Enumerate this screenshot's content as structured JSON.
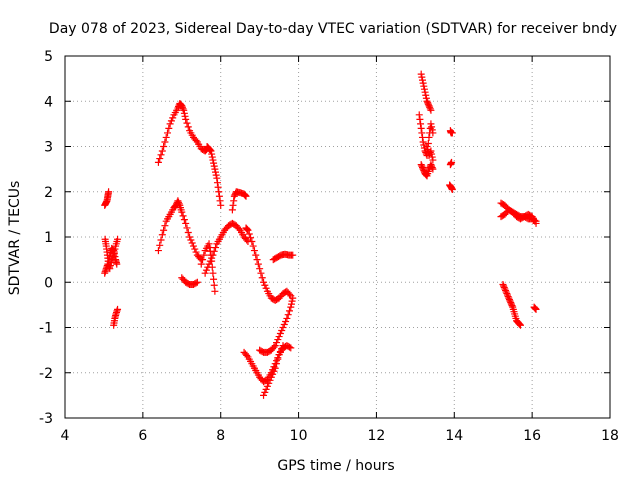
{
  "chart_data": {
    "type": "scatter",
    "title": "Day 078 of 2023, Sidereal Day-to-day VTEC variation (SDTVAR) for receiver bndy",
    "xlabel": "GPS time / hours",
    "ylabel": "SDTVAR / TECUs",
    "xlim": [
      4,
      18
    ],
    "ylim": [
      -3,
      5
    ],
    "xticks": [
      4,
      6,
      8,
      10,
      12,
      14,
      16,
      18
    ],
    "yticks": [
      -3,
      -2,
      -1,
      0,
      1,
      2,
      3,
      4,
      5
    ],
    "xtick_labels": [
      "4",
      "6",
      "8",
      "10",
      "12",
      "14",
      "16",
      "18"
    ],
    "ytick_labels": [
      "-3",
      "-2",
      "-1",
      "0",
      "1",
      "2",
      "3",
      "4",
      "5"
    ],
    "grid": true,
    "marker": "plus",
    "color": "#ff0000",
    "series": [
      {
        "name": "s1",
        "x": [
          5.02,
          5.05,
          5.08,
          5.1,
          5.12
        ],
        "y": [
          1.7,
          1.75,
          1.8,
          1.9,
          2.0
        ]
      },
      {
        "name": "s2",
        "x": [
          5.03,
          5.06,
          5.09,
          5.12,
          5.15,
          5.2,
          5.25,
          5.3,
          5.35
        ],
        "y": [
          0.95,
          0.8,
          0.6,
          0.4,
          0.3,
          0.5,
          0.6,
          0.8,
          0.95
        ]
      },
      {
        "name": "s3",
        "x": [
          5.02,
          5.06,
          5.1,
          5.15,
          5.2,
          5.25,
          5.3,
          5.33
        ],
        "y": [
          0.2,
          0.3,
          0.4,
          0.6,
          0.75,
          0.7,
          0.5,
          0.4
        ]
      },
      {
        "name": "s4",
        "x": [
          5.25,
          5.28,
          5.31,
          5.35
        ],
        "y": [
          -0.95,
          -0.8,
          -0.7,
          -0.6
        ]
      },
      {
        "name": "s5",
        "x": [
          6.4,
          6.5,
          6.6,
          6.7,
          6.8,
          6.9,
          6.95,
          7.0,
          7.05,
          7.1,
          7.2,
          7.3,
          7.4,
          7.5,
          7.6,
          7.65
        ],
        "y": [
          2.65,
          2.9,
          3.2,
          3.5,
          3.7,
          3.85,
          3.95,
          3.9,
          3.8,
          3.6,
          3.35,
          3.2,
          3.1,
          2.95,
          2.9,
          2.95
        ]
      },
      {
        "name": "s6",
        "x": [
          7.65,
          7.7,
          7.75,
          7.8,
          7.85,
          7.9,
          7.95,
          8.0
        ],
        "y": [
          3.0,
          2.95,
          2.9,
          2.7,
          2.5,
          2.3,
          2.0,
          1.7
        ]
      },
      {
        "name": "s7",
        "x": [
          6.4,
          6.5,
          6.6,
          6.7,
          6.8,
          6.85,
          6.9,
          6.95,
          7.0,
          7.1,
          7.2,
          7.3,
          7.4,
          7.5
        ],
        "y": [
          0.7,
          1.05,
          1.35,
          1.5,
          1.65,
          1.7,
          1.8,
          1.7,
          1.55,
          1.3,
          1.0,
          0.8,
          0.6,
          0.5
        ]
      },
      {
        "name": "s8",
        "x": [
          7.0,
          7.1,
          7.2,
          7.3,
          7.4
        ],
        "y": [
          0.1,
          0.0,
          -0.05,
          -0.05,
          0.0
        ]
      },
      {
        "name": "s9",
        "x": [
          7.5,
          7.6,
          7.7,
          7.75,
          7.8,
          7.85
        ],
        "y": [
          0.4,
          0.7,
          0.85,
          0.6,
          0.2,
          -0.2
        ]
      },
      {
        "name": "s10",
        "x": [
          7.6,
          7.7,
          7.8,
          7.9,
          8.0,
          8.1,
          8.2,
          8.3,
          8.4,
          8.5,
          8.6,
          8.7
        ],
        "y": [
          0.2,
          0.4,
          0.6,
          0.85,
          1.0,
          1.15,
          1.25,
          1.3,
          1.25,
          1.15,
          1.0,
          0.9
        ]
      },
      {
        "name": "s11",
        "x": [
          8.3,
          8.35,
          8.4,
          8.5,
          8.6,
          8.65
        ],
        "y": [
          1.6,
          1.9,
          2.0,
          1.98,
          1.95,
          1.9
        ]
      },
      {
        "name": "s12",
        "x": [
          8.65,
          8.7,
          8.8,
          8.9,
          9.0,
          9.1,
          9.2,
          9.3,
          9.4,
          9.5,
          9.6,
          9.7,
          9.8
        ],
        "y": [
          1.2,
          1.15,
          0.9,
          0.6,
          0.3,
          0.0,
          -0.2,
          -0.35,
          -0.4,
          -0.35,
          -0.25,
          -0.2,
          -0.3
        ]
      },
      {
        "name": "s13",
        "x": [
          9.35,
          9.45,
          9.55,
          9.65,
          9.75,
          9.85
        ],
        "y": [
          0.5,
          0.55,
          0.6,
          0.62,
          0.6,
          0.6
        ]
      },
      {
        "name": "s14",
        "x": [
          8.6,
          8.7,
          8.8,
          8.9,
          9.0,
          9.1,
          9.2,
          9.3,
          9.4,
          9.5,
          9.6,
          9.7,
          9.8
        ],
        "y": [
          -1.55,
          -1.65,
          -1.8,
          -1.95,
          -2.1,
          -2.2,
          -2.15,
          -2.0,
          -1.8,
          -1.6,
          -1.45,
          -1.4,
          -1.45
        ]
      },
      {
        "name": "s15",
        "x": [
          9.0,
          9.1,
          9.2,
          9.3,
          9.4,
          9.5,
          9.6,
          9.7,
          9.8,
          9.85
        ],
        "y": [
          -1.5,
          -1.55,
          -1.55,
          -1.5,
          -1.4,
          -1.2,
          -1.0,
          -0.8,
          -0.55,
          -0.35
        ]
      },
      {
        "name": "s16",
        "x": [
          9.1,
          9.2,
          9.3,
          9.4,
          9.5,
          9.6
        ],
        "y": [
          -2.5,
          -2.3,
          -2.1,
          -1.9,
          -1.6,
          -1.4
        ]
      },
      {
        "name": "s17",
        "x": [
          13.15,
          13.2,
          13.25,
          13.3,
          13.35,
          13.4
        ],
        "y": [
          4.6,
          4.4,
          4.2,
          4.0,
          3.9,
          3.8
        ]
      },
      {
        "name": "s18",
        "x": [
          13.1,
          13.15,
          13.2,
          13.25,
          13.3,
          13.35,
          13.4,
          13.45
        ],
        "y": [
          3.7,
          3.4,
          3.1,
          2.9,
          2.8,
          3.2,
          3.5,
          3.3
        ]
      },
      {
        "name": "s19",
        "x": [
          13.15,
          13.2,
          13.25,
          13.3,
          13.35,
          13.4,
          13.45
        ],
        "y": [
          2.6,
          2.5,
          2.4,
          2.35,
          2.5,
          2.6,
          2.5
        ]
      },
      {
        "name": "s20",
        "x": [
          13.3,
          13.35,
          13.4,
          13.45
        ],
        "y": [
          3.0,
          2.8,
          2.9,
          2.7
        ]
      },
      {
        "name": "s21",
        "x": [
          13.9,
          13.92,
          13.95
        ],
        "y": [
          3.35,
          3.3,
          3.3
        ]
      },
      {
        "name": "s22",
        "x": [
          13.9,
          13.93
        ],
        "y": [
          2.6,
          2.65
        ]
      },
      {
        "name": "s23",
        "x": [
          13.88,
          13.92,
          13.95
        ],
        "y": [
          2.15,
          2.1,
          2.05
        ]
      },
      {
        "name": "s24",
        "x": [
          15.2,
          15.3,
          15.4,
          15.5,
          15.6,
          15.7,
          15.8,
          15.9,
          16.0,
          16.1
        ],
        "y": [
          1.75,
          1.7,
          1.6,
          1.55,
          1.5,
          1.45,
          1.45,
          1.4,
          1.4,
          1.35
        ]
      },
      {
        "name": "s25",
        "x": [
          15.2,
          15.3,
          15.4,
          15.5,
          15.6,
          15.7,
          15.8,
          15.9,
          16.0,
          16.1
        ],
        "y": [
          1.45,
          1.5,
          1.6,
          1.55,
          1.45,
          1.4,
          1.45,
          1.5,
          1.45,
          1.3
        ]
      },
      {
        "name": "s26",
        "x": [
          15.25,
          15.3,
          15.35,
          15.4,
          15.45,
          15.5,
          15.55,
          15.6,
          15.65,
          15.7
        ],
        "y": [
          -0.05,
          -0.15,
          -0.25,
          -0.35,
          -0.45,
          -0.55,
          -0.7,
          -0.85,
          -0.9,
          -0.95
        ]
      },
      {
        "name": "s27",
        "x": [
          16.05,
          16.1
        ],
        "y": [
          -0.55,
          -0.6
        ]
      }
    ]
  }
}
